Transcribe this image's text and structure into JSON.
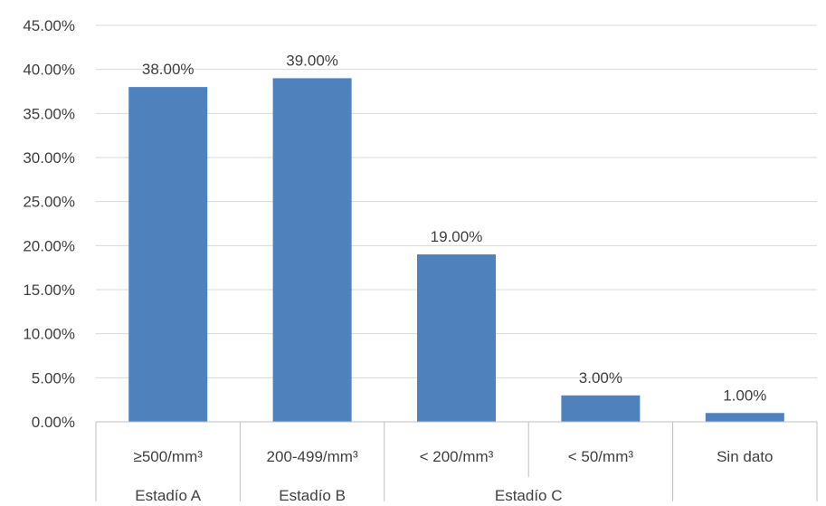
{
  "chart_data": {
    "type": "bar",
    "title": "",
    "xlabel": "",
    "ylabel": "",
    "ylim": [
      0,
      45
    ],
    "y_ticks": [
      0,
      5,
      10,
      15,
      20,
      25,
      30,
      35,
      40,
      45
    ],
    "y_tick_format": "percent_2dp",
    "grid": true,
    "legend": "none",
    "bar_color": "#4f81bd",
    "categories": [
      "≥500/mm³",
      "200-499/mm³",
      "< 200/mm³",
      "< 50/mm³",
      "Sin dato"
    ],
    "values": [
      38.0,
      39.0,
      19.0,
      3.0,
      1.0
    ],
    "data_labels": [
      "38.00%",
      "39.00%",
      "19.00%",
      "3.00%",
      "1.00%"
    ],
    "groups": [
      {
        "label": "Estadío A",
        "categories": [
          "≥500/mm³"
        ]
      },
      {
        "label": "Estadío B",
        "categories": [
          "200-499/mm³"
        ]
      },
      {
        "label": "Estadío C",
        "categories": [
          "< 200/mm³",
          "< 50/mm³"
        ]
      },
      {
        "label": "",
        "categories": [
          "Sin dato"
        ]
      }
    ]
  }
}
